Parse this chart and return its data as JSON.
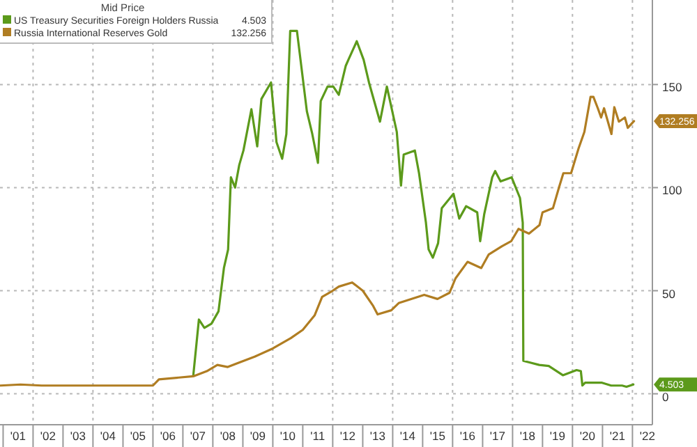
{
  "chart_data": {
    "type": "line",
    "legend_title": "Mid Price",
    "legend": "top left",
    "grid": true,
    "xlim": [
      "2000-11-24",
      "2022-09-01"
    ],
    "ylim": [
      -15,
      191
    ],
    "yticks": [
      0,
      50,
      100,
      150
    ],
    "xticks": [
      {
        "value": "2001-01-01",
        "label": null
      },
      {
        "value": "2001-07-02",
        "label": "'01"
      },
      {
        "value": "2002-01-01",
        "label": null
      },
      {
        "value": "2002-07-02",
        "label": "'02"
      },
      {
        "value": "2003-01-01",
        "label": null
      },
      {
        "value": "2003-07-02",
        "label": "'03"
      },
      {
        "value": "2004-01-01",
        "label": null
      },
      {
        "value": "2004-07-02",
        "label": "'04"
      },
      {
        "value": "2005-01-01",
        "label": null
      },
      {
        "value": "2005-07-02",
        "label": "'05"
      },
      {
        "value": "2006-01-01",
        "label": null
      },
      {
        "value": "2006-07-02",
        "label": "'06"
      },
      {
        "value": "2007-01-01",
        "label": null
      },
      {
        "value": "2007-07-02",
        "label": "'07"
      },
      {
        "value": "2008-01-01",
        "label": null
      },
      {
        "value": "2008-07-02",
        "label": "'08"
      },
      {
        "value": "2009-01-01",
        "label": null
      },
      {
        "value": "2009-07-02",
        "label": "'09"
      },
      {
        "value": "2010-01-01",
        "label": null
      },
      {
        "value": "2010-07-02",
        "label": "'10"
      },
      {
        "value": "2011-01-01",
        "label": null
      },
      {
        "value": "2011-07-02",
        "label": "'11"
      },
      {
        "value": "2012-01-01",
        "label": null
      },
      {
        "value": "2012-07-02",
        "label": "'12"
      },
      {
        "value": "2013-01-01",
        "label": null
      },
      {
        "value": "2013-07-02",
        "label": "'13"
      },
      {
        "value": "2014-01-01",
        "label": null
      },
      {
        "value": "2014-07-02",
        "label": "'14"
      },
      {
        "value": "2015-01-01",
        "label": null
      },
      {
        "value": "2015-07-02",
        "label": "'15"
      },
      {
        "value": "2016-01-01",
        "label": null
      },
      {
        "value": "2016-07-02",
        "label": "'16"
      },
      {
        "value": "2017-01-01",
        "label": null
      },
      {
        "value": "2017-07-02",
        "label": "'17"
      },
      {
        "value": "2018-01-01",
        "label": null
      },
      {
        "value": "2018-07-02",
        "label": "'18"
      },
      {
        "value": "2019-01-01",
        "label": null
      },
      {
        "value": "2019-07-02",
        "label": "'19"
      },
      {
        "value": "2020-01-01",
        "label": null
      },
      {
        "value": "2020-07-02",
        "label": "'20"
      },
      {
        "value": "2021-01-01",
        "label": null
      },
      {
        "value": "2021-07-02",
        "label": "'21"
      },
      {
        "value": "2022-01-01",
        "label": null
      },
      {
        "value": "2022-07-02",
        "label": "'22"
      }
    ],
    "series": [
      {
        "name": "US Treasury Securities Foreign Holders Russia",
        "color": "#5c9a1b",
        "x": [
          "2007-05-08",
          "2007-07-15",
          "2007-09-20",
          "2007-12-15",
          "2008-03-10",
          "2008-05-15",
          "2008-07-05",
          "2008-08-08",
          "2008-09-28",
          "2008-11-18",
          "2009-01-08",
          "2009-04-15",
          "2009-06-25",
          "2009-08-15",
          "2009-12-10",
          "2010-02-15",
          "2010-04-25",
          "2010-06-15",
          "2010-08-01",
          "2010-10-22",
          "2011-02-20",
          "2011-04-27",
          "2011-07-05",
          "2011-08-08",
          "2011-10-30",
          "2012-01-08",
          "2012-03-15",
          "2012-06-07",
          "2012-07-10",
          "2012-10-20",
          "2013-01-12",
          "2013-03-18",
          "2013-07-30",
          "2013-10-22",
          "2014-02-20",
          "2014-04-12",
          "2014-05-15",
          "2014-09-28",
          "2014-11-18",
          "2015-02-10",
          "2015-03-15",
          "2015-05-05",
          "2015-07-08",
          "2015-08-22",
          "2016-01-12",
          "2016-03-22",
          "2016-06-14",
          "2016-10-27",
          "2016-12-02",
          "2017-01-20",
          "2017-04-28",
          "2017-06-03",
          "2017-08-08",
          "2017-12-20",
          "2018-04-01",
          "2018-05-05",
          "2018-05-12",
          "2018-11-22",
          "2019-03-18",
          "2019-09-06",
          "2020-02-20",
          "2020-04-12",
          "2020-05-01",
          "2020-06-03",
          "2020-12-20",
          "2021-04-16",
          "2021-08-28",
          "2021-10-20",
          "2022-01-12"
        ],
        "values": [
          9,
          36,
          32,
          34,
          40,
          61,
          70,
          105,
          100,
          111,
          118,
          138,
          120,
          143,
          151,
          122,
          114,
          126,
          176,
          176,
          137,
          126,
          112,
          142,
          149,
          149,
          145,
          159,
          162,
          171,
          162,
          151,
          132,
          149,
          127,
          101,
          116,
          118,
          107,
          83,
          70,
          66,
          73,
          90,
          97,
          85,
          91,
          88,
          74,
          87,
          105,
          108,
          103,
          105,
          95,
          83,
          16,
          14,
          13.5,
          9,
          11.5,
          11,
          4,
          5.4,
          5.4,
          4,
          4,
          3.4,
          4.503
        ]
      },
      {
        "name": "Russia International Reserves Gold",
        "color": "#b07d22",
        "x": [
          "2000-12-01",
          "2001-08-01",
          "2002-04-15",
          "2006-01-01",
          "2006-03-15",
          "2007-05-08",
          "2007-10-20",
          "2008-02-25",
          "2008-07-01",
          "2008-11-05",
          "2009-05-25",
          "2010-01-01",
          "2010-08-08",
          "2011-01-01",
          "2011-05-25",
          "2011-08-25",
          "2012-01-01",
          "2012-03-15",
          "2012-08-25",
          "2013-01-01",
          "2013-05-08",
          "2013-07-01",
          "2013-12-15",
          "2014-03-15",
          "2015-01-20",
          "2015-07-01",
          "2015-11-25",
          "2016-02-06",
          "2016-07-01",
          "2016-12-15",
          "2017-03-15",
          "2017-08-25",
          "2017-12-15",
          "2018-03-15",
          "2018-07-20",
          "2018-11-25",
          "2019-01-01",
          "2019-05-08",
          "2019-07-20",
          "2019-09-12",
          "2019-12-15",
          "2020-03-15",
          "2020-05-25",
          "2020-08-08",
          "2020-09-12",
          "2020-11-05",
          "2020-12-15",
          "2021-01-20",
          "2021-04-20",
          "2021-05-25",
          "2021-07-20",
          "2021-10-01",
          "2021-11-05",
          "2022-01-20"
        ],
        "values": [
          4,
          4.5,
          4,
          4,
          7,
          8.5,
          11,
          14,
          13,
          15,
          18,
          22,
          27,
          31,
          38,
          47,
          50,
          52,
          54,
          50,
          42.6,
          38.5,
          40.5,
          44,
          48,
          46,
          49,
          56,
          64,
          61,
          67.5,
          71.6,
          74,
          80,
          77.7,
          81.8,
          88,
          90,
          100,
          107,
          107,
          119,
          127,
          144,
          144,
          138.5,
          134,
          138.5,
          126,
          139,
          132,
          134,
          129,
          132.256
        ]
      }
    ],
    "annotations": [
      "4.503",
      "132.256"
    ]
  }
}
